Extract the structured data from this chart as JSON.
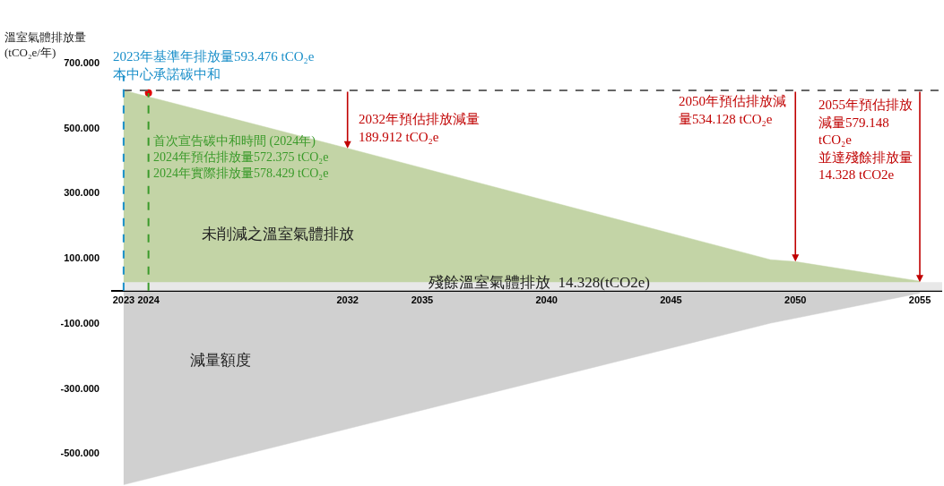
{
  "chart_data": {
    "type": "area",
    "ylabel": "溫室氣體排放量\n(tCO₂e/年)",
    "series": [
      {
        "color": "#c3d4a6",
        "x": [
          2023,
          2032,
          2049,
          2050,
          2055
        ],
        "values": [
          615,
          437,
          95,
          89,
          29
        ]
      },
      {
        "type": "area",
        "color": "#d0d0d0",
        "x": [
          2023,
          2049,
          2055
        ],
        "values": [
          -596,
          -100,
          -8
        ]
      },
      {
        "type": "scatter",
        "color": "#e00000",
        "x": [
          2024
        ],
        "values": [
          607
        ]
      }
    ],
    "xlim": [
      2022.5,
      2055.9
    ],
    "xticks": [
      2023,
      2024,
      2032,
      2035,
      2040,
      2045,
      2050,
      2055
    ],
    "ylim": [
      -600,
      700
    ],
    "yticks": [
      {
        "value": 700,
        "label": "700.000"
      },
      {
        "value": 500,
        "label": "500.000"
      },
      {
        "value": 300,
        "label": "300.000"
      },
      {
        "value": 100,
        "label": "100.000"
      },
      {
        "value": -100,
        "label": "-100.000"
      },
      {
        "value": -300,
        "label": "-300.000"
      },
      {
        "value": -500,
        "label": "-500.000"
      }
    ],
    "grid": false,
    "ref_lines": [
      {
        "axis": "y",
        "value": 615,
        "color": "#666666",
        "line_style": "dashed"
      },
      {
        "axis": "x",
        "value": 2023,
        "color": "#1a8fc9",
        "line_style": "dashed",
        "label": "2023年基準年排放量593.476 tCO₂e\n本中心承諾碳中和"
      },
      {
        "axis": "x",
        "value": 2024,
        "color": "#3a9a2a",
        "line_style": "dashed",
        "label": "首次宣告碳中和時間 (2024年)\n2024年預估排放量572.375 tCO₂e\n2024年實際排放量578.429 tCO₂e"
      }
    ],
    "bands": [
      {
        "axis": "y",
        "from": 0,
        "to": 26,
        "color": "#e8e8e8",
        "label": "殘餘溫室氣體排放  14.328(tCO2e)"
      }
    ],
    "annotations": [
      "未削減之溫室氣體排放",
      "減量額度",
      {
        "text": "2032年預估排放減量\n189.912 tCO₂e",
        "x": 2032,
        "y": 437
      },
      {
        "text": "2050年預估排放減量534.128 tCO₂e",
        "x": 2050,
        "y": 89
      },
      {
        "text": "2055年預估排放減量579.148 tCO₂e\n並達殘餘排放量\n14.328 tCO2e",
        "x": 2055,
        "y": 26
      }
    ]
  }
}
